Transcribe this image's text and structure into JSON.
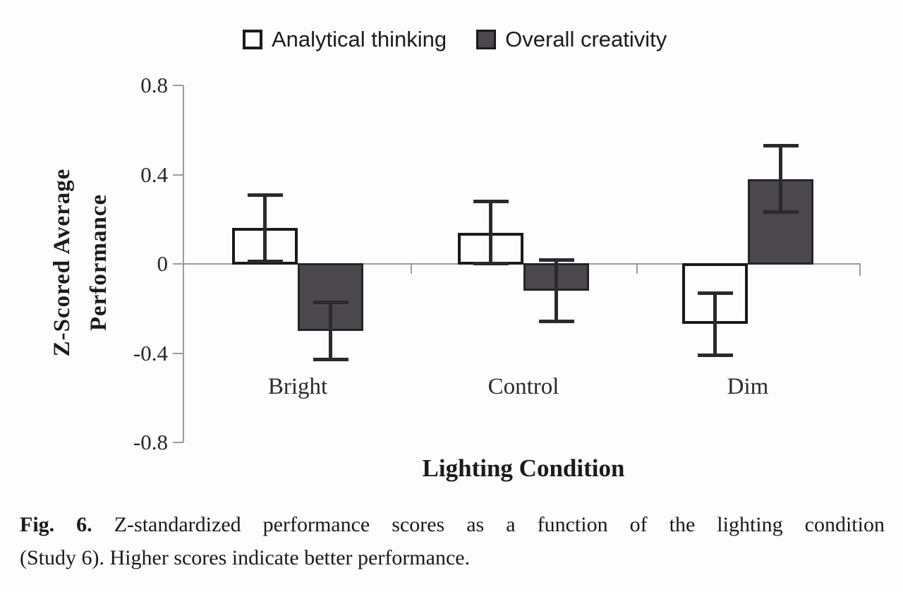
{
  "chart_data": {
    "type": "bar",
    "categories": [
      "Bright",
      "Control",
      "Dim"
    ],
    "series": [
      {
        "name": "Analytical thinking",
        "values": [
          0.16,
          0.14,
          -0.27
        ],
        "errors": [
          0.15,
          0.14,
          0.14
        ],
        "fill": "#fdfdfd",
        "border": "#1b191d"
      },
      {
        "name": "Overall creativity",
        "values": [
          -0.3,
          -0.12,
          0.38
        ],
        "errors": [
          0.13,
          0.14,
          0.15
        ],
        "fill": "#4b484d",
        "border": "#26242a"
      }
    ],
    "xlabel": "Lighting Condition",
    "ylabel": "Z-Scored Average Performance",
    "ylabel_lines": [
      "Z-Scored Average",
      "Performance"
    ],
    "yticks": [
      0.8,
      0.4,
      0,
      -0.4,
      -0.8
    ],
    "ytick_labels": [
      "0.8",
      "0.4",
      "0",
      "-0.4",
      "-0.8"
    ],
    "ylim": [
      -0.8,
      0.8
    ],
    "grid": false,
    "legend_position": "top-center",
    "error_bars": true
  },
  "caption": {
    "label": "Fig. 6.",
    "line1": "Z-standardized performance scores as a function of the lighting condition",
    "line2": "(Study 6). Higher scores indicate better performance."
  },
  "colors": {
    "axis": "#9b9b9b",
    "text": "#1e1d1f",
    "bar_dark_fill": "#4b484d",
    "background": "#fdfdfd"
  }
}
